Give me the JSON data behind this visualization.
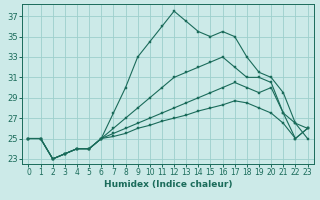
{
  "xlabel": "Humidex (Indice chaleur)",
  "bg_color": "#cceae8",
  "grid_color": "#9dcfcc",
  "line_color": "#1a6b5a",
  "xlim": [
    -0.5,
    23.5
  ],
  "ylim": [
    22.5,
    38.2
  ],
  "yticks": [
    23,
    25,
    27,
    29,
    31,
    33,
    35,
    37
  ],
  "xticks": [
    0,
    1,
    2,
    3,
    4,
    5,
    6,
    7,
    8,
    9,
    10,
    11,
    12,
    13,
    14,
    15,
    16,
    17,
    18,
    19,
    20,
    21,
    22,
    23
  ],
  "series": [
    [
      25,
      25,
      23,
      23.5,
      24,
      24,
      25,
      27.5,
      30,
      33,
      34.5,
      36,
      37.5,
      36.5,
      35.5,
      35,
      35.5,
      35,
      33,
      31.5,
      31,
      29.5,
      26.5,
      26
    ],
    [
      25,
      25,
      23,
      23.5,
      24,
      24,
      25,
      26,
      27,
      28,
      29,
      30,
      31,
      31.5,
      32,
      32.5,
      33,
      32,
      31,
      31,
      30.5,
      27.5,
      26.5,
      25
    ],
    [
      25,
      25,
      23,
      23.5,
      24,
      24,
      25,
      25.5,
      26.0,
      26.5,
      27.0,
      27.5,
      28.0,
      28.5,
      29.0,
      29.5,
      30.0,
      30.5,
      30.0,
      29.5,
      30,
      27.5,
      25,
      26
    ],
    [
      25,
      25,
      23,
      23.5,
      24,
      24,
      25,
      25.2,
      25.5,
      26.0,
      26.3,
      26.7,
      27.0,
      27.3,
      27.7,
      28.0,
      28.3,
      28.7,
      28.5,
      28.0,
      27.5,
      26.5,
      25,
      26
    ]
  ],
  "subplot_params": [
    0.07,
    0.18,
    0.98,
    0.98
  ]
}
